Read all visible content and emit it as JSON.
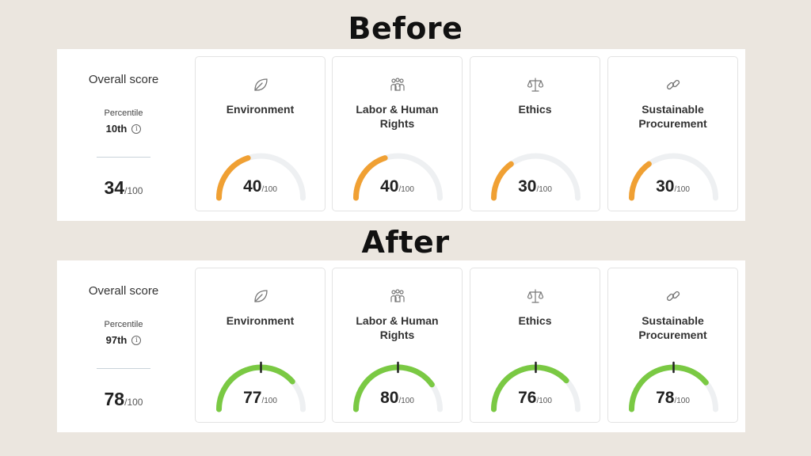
{
  "headings": {
    "before": "Before",
    "after": "After"
  },
  "colors": {
    "track": "#eef0f2",
    "before_arc": "#f0a033",
    "after_arc": "#7ac943",
    "marker": "#222222"
  },
  "before": {
    "overall": {
      "title": "Overall score",
      "percentile_label": "Percentile",
      "percentile": "10th",
      "score": "34",
      "denom": "/100"
    },
    "cards": [
      {
        "label": "Environment",
        "icon": "leaf-icon",
        "value": 40,
        "value_text": "40",
        "denom": "/100"
      },
      {
        "label": "Labor & Human Rights",
        "icon": "people-icon",
        "value": 40,
        "value_text": "40",
        "denom": "/100"
      },
      {
        "label": "Ethics",
        "icon": "scales-icon",
        "value": 30,
        "value_text": "30",
        "denom": "/100"
      },
      {
        "label": "Sustainable Procurement",
        "icon": "link-icon",
        "value": 30,
        "value_text": "30",
        "denom": "/100"
      }
    ]
  },
  "after": {
    "overall": {
      "title": "Overall score",
      "percentile_label": "Percentile",
      "percentile": "97th",
      "score": "78",
      "denom": "/100"
    },
    "cards": [
      {
        "label": "Environment",
        "icon": "leaf-icon",
        "value": 77,
        "value_text": "77",
        "denom": "/100",
        "marker": 50
      },
      {
        "label": "Labor & Human Rights",
        "icon": "people-icon",
        "value": 80,
        "value_text": "80",
        "denom": "/100",
        "marker": 50
      },
      {
        "label": "Ethics",
        "icon": "scales-icon",
        "value": 76,
        "value_text": "76",
        "denom": "/100",
        "marker": 50
      },
      {
        "label": "Sustainable Procurement",
        "icon": "link-icon",
        "value": 78,
        "value_text": "78",
        "denom": "/100",
        "marker": 50
      }
    ]
  }
}
